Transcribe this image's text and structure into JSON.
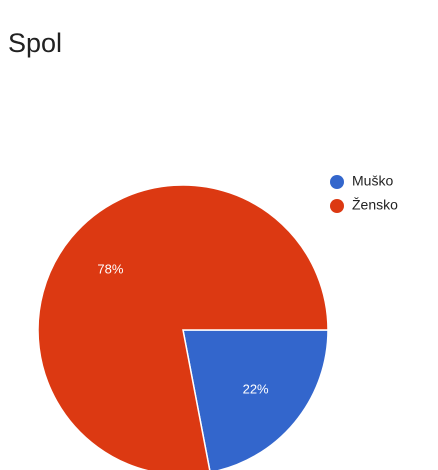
{
  "chart_data": {
    "type": "pie",
    "title": "Spol",
    "categories": [
      "Muško",
      "Žensko"
    ],
    "values": [
      22,
      78
    ],
    "value_labels": [
      "22%",
      "78%"
    ],
    "colors": [
      "#3366cc",
      "#dc3912"
    ]
  }
}
